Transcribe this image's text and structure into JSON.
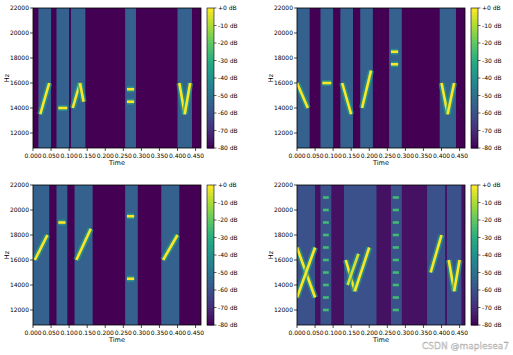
{
  "chart_data": [
    {
      "type": "spectrogram",
      "xlabel": "Time",
      "ylabel": "Hz",
      "xlim": [
        0,
        0.465
      ],
      "ylim": [
        10800,
        22000
      ],
      "xticks": [
        {
          "value": 0,
          "label": "0.000"
        },
        {
          "value": 0.05,
          "label": "0.050"
        },
        {
          "value": 0.1,
          "label": "0.100"
        },
        {
          "value": 0.15,
          "label": "0.150"
        },
        {
          "value": 0.2,
          "label": "0.200"
        },
        {
          "value": 0.25,
          "label": "0.250"
        },
        {
          "value": 0.3,
          "label": "0.300"
        },
        {
          "value": 0.35,
          "label": "0.350"
        },
        {
          "value": 0.4,
          "label": "0.400"
        },
        {
          "value": 0.45,
          "label": "0.450"
        }
      ],
      "yticks": [
        12000,
        14000,
        16000,
        18000,
        20000,
        22000
      ],
      "colorbar_range": [
        -80,
        0
      ],
      "colorbar_ticks": [
        {
          "value": 0,
          "label": "+0 dB"
        },
        {
          "value": -10,
          "label": "-10 dB"
        },
        {
          "value": -20,
          "label": "-20 dB"
        },
        {
          "value": -30,
          "label": "-30 dB"
        },
        {
          "value": -40,
          "label": "-40 dB"
        },
        {
          "value": -50,
          "label": "-50 dB"
        },
        {
          "value": -60,
          "label": "-60 dB"
        },
        {
          "value": -70,
          "label": "-70 dB"
        },
        {
          "value": -80,
          "label": "-80 dB"
        }
      ],
      "background": -80,
      "bands": {
        "t0": [
          0.015,
          0.065,
          0.105,
          0.255,
          0.4
        ],
        "t1": [
          0.05,
          0.1,
          0.145,
          0.285,
          0.44
        ],
        "level": [
          -55,
          -55,
          -55,
          -55,
          -55
        ]
      },
      "chirps": {
        "t0": [
          0.02,
          0.07,
          0.11,
          0.13,
          0.26,
          0.26,
          0.405,
          0.42
        ],
        "t1": [
          0.045,
          0.095,
          0.13,
          0.14,
          0.28,
          0.28,
          0.42,
          0.435
        ],
        "f0": [
          13500,
          14000,
          14000,
          16000,
          15500,
          14500,
          16000,
          13500
        ],
        "f1": [
          16000,
          14000,
          16000,
          14500,
          15500,
          14500,
          13500,
          16000
        ],
        "level": [
          0,
          0,
          0,
          0,
          0,
          0,
          0,
          0
        ]
      }
    },
    {
      "type": "spectrogram",
      "xlabel": "Time",
      "ylabel": "Hz",
      "xlim": [
        0,
        0.465
      ],
      "ylim": [
        10800,
        22000
      ],
      "xticks": [
        {
          "value": 0,
          "label": "0.000"
        },
        {
          "value": 0.05,
          "label": "0.050"
        },
        {
          "value": 0.1,
          "label": "0.100"
        },
        {
          "value": 0.15,
          "label": "0.150"
        },
        {
          "value": 0.2,
          "label": "0.200"
        },
        {
          "value": 0.25,
          "label": "0.250"
        },
        {
          "value": 0.3,
          "label": "0.300"
        },
        {
          "value": 0.35,
          "label": "0.350"
        },
        {
          "value": 0.4,
          "label": "0.400"
        },
        {
          "value": 0.45,
          "label": "0.450"
        }
      ],
      "yticks": [
        12000,
        14000,
        16000,
        18000,
        20000,
        22000
      ],
      "colorbar_range": [
        -80,
        0
      ],
      "colorbar_ticks": [
        {
          "value": 0,
          "label": "+0 dB"
        },
        {
          "value": -10,
          "label": "-10 dB"
        },
        {
          "value": -20,
          "label": "-20 dB"
        },
        {
          "value": -30,
          "label": "-30 dB"
        },
        {
          "value": -40,
          "label": "-40 dB"
        },
        {
          "value": -50,
          "label": "-50 dB"
        },
        {
          "value": -60,
          "label": "-60 dB"
        },
        {
          "value": -70,
          "label": "-70 dB"
        },
        {
          "value": -80,
          "label": "-80 dB"
        }
      ],
      "background": -80,
      "bands": {
        "t0": [
          0,
          0.065,
          0.12,
          0.175,
          0.255,
          0.395
        ],
        "t1": [
          0.035,
          0.1,
          0.155,
          0.21,
          0.29,
          0.44
        ],
        "level": [
          -55,
          -55,
          -55,
          -55,
          -55,
          -55
        ]
      },
      "chirps": {
        "t0": [
          0,
          0.07,
          0.125,
          0.18,
          0.26,
          0.26,
          0.4,
          0.417
        ],
        "t1": [
          0.03,
          0.095,
          0.15,
          0.205,
          0.28,
          0.28,
          0.417,
          0.435
        ],
        "f0": [
          16000,
          16000,
          16000,
          14000,
          18500,
          17500,
          16000,
          13500
        ],
        "f1": [
          14000,
          16000,
          13500,
          17000,
          18500,
          17500,
          13500,
          16000
        ],
        "level": [
          0,
          0,
          0,
          0,
          0,
          0,
          0,
          0
        ]
      }
    },
    {
      "type": "spectrogram",
      "xlabel": "Time",
      "ylabel": "Hz",
      "xlim": [
        0,
        0.465
      ],
      "ylim": [
        10800,
        22000
      ],
      "xticks": [
        {
          "value": 0,
          "label": "0.000"
        },
        {
          "value": 0.05,
          "label": "0.050"
        },
        {
          "value": 0.1,
          "label": "0.100"
        },
        {
          "value": 0.15,
          "label": "0.150"
        },
        {
          "value": 0.2,
          "label": "0.200"
        },
        {
          "value": 0.25,
          "label": "0.250"
        },
        {
          "value": 0.3,
          "label": "0.300"
        },
        {
          "value": 0.35,
          "label": "0.350"
        },
        {
          "value": 0.4,
          "label": "0.400"
        },
        {
          "value": 0.45,
          "label": "0.450"
        }
      ],
      "yticks": [
        12000,
        14000,
        16000,
        18000,
        20000,
        22000
      ],
      "colorbar_range": [
        -80,
        0
      ],
      "colorbar_ticks": [
        {
          "value": 0,
          "label": "+0 dB"
        },
        {
          "value": -10,
          "label": "-10 dB"
        },
        {
          "value": -20,
          "label": "-20 dB"
        },
        {
          "value": -30,
          "label": "-30 dB"
        },
        {
          "value": -40,
          "label": "-40 dB"
        },
        {
          "value": -50,
          "label": "-50 dB"
        },
        {
          "value": -60,
          "label": "-60 dB"
        },
        {
          "value": -70,
          "label": "-70 dB"
        },
        {
          "value": -80,
          "label": "-80 dB"
        }
      ],
      "background": -80,
      "bands": {
        "t0": [
          0,
          0.065,
          0.115,
          0.255,
          0.355
        ],
        "t1": [
          0.045,
          0.095,
          0.165,
          0.29,
          0.405
        ],
        "level": [
          -55,
          -55,
          -55,
          -55,
          -55
        ]
      },
      "chirps": {
        "t0": [
          0.005,
          0.07,
          0.12,
          0.26,
          0.26,
          0.36
        ],
        "t1": [
          0.04,
          0.09,
          0.16,
          0.28,
          0.28,
          0.4
        ],
        "f0": [
          16000,
          19000,
          16000,
          19500,
          14500,
          16000
        ],
        "f1": [
          18000,
          19000,
          18500,
          19500,
          14500,
          18000
        ],
        "level": [
          0,
          0,
          0,
          0,
          0,
          0
        ]
      }
    },
    {
      "type": "spectrogram",
      "xlabel": "Time",
      "ylabel": "Hz",
      "xlim": [
        0,
        0.465
      ],
      "ylim": [
        10800,
        22000
      ],
      "xticks": [
        {
          "value": 0,
          "label": "0.000"
        },
        {
          "value": 0.05,
          "label": "0.050"
        },
        {
          "value": 0.1,
          "label": "0.100"
        },
        {
          "value": 0.15,
          "label": "0.150"
        },
        {
          "value": 0.2,
          "label": "0.200"
        },
        {
          "value": 0.25,
          "label": "0.250"
        },
        {
          "value": 0.3,
          "label": "0.300"
        },
        {
          "value": 0.35,
          "label": "0.350"
        },
        {
          "value": 0.4,
          "label": "0.400"
        },
        {
          "value": 0.45,
          "label": "0.450"
        }
      ],
      "yticks": [
        12000,
        14000,
        16000,
        18000,
        20000,
        22000
      ],
      "colorbar_range": [
        -80,
        0
      ],
      "colorbar_ticks": [
        {
          "value": 0,
          "label": "+0 dB"
        },
        {
          "value": -10,
          "label": "-10 dB"
        },
        {
          "value": -20,
          "label": "-20 dB"
        },
        {
          "value": -30,
          "label": "-30 dB"
        },
        {
          "value": -40,
          "label": "-40 dB"
        },
        {
          "value": -50,
          "label": "-50 dB"
        },
        {
          "value": -60,
          "label": "-60 dB"
        },
        {
          "value": -70,
          "label": "-70 dB"
        },
        {
          "value": -80,
          "label": "-80 dB"
        }
      ],
      "background": -76,
      "bands": {
        "t0": [
          0,
          0.065,
          0.13,
          0.26,
          0.36,
          0.415
        ],
        "t1": [
          0.05,
          0.095,
          0.22,
          0.29,
          0.41,
          0.455
        ],
        "level": [
          -60,
          -60,
          -60,
          -60,
          -60,
          -60
        ]
      },
      "chirps": {
        "t0": [
          0,
          0,
          0.072,
          0.072,
          0.072,
          0.072,
          0.072,
          0.072,
          0.072,
          0.072,
          0.072,
          0.072,
          0.135,
          0.16,
          0.14,
          0.265,
          0.265,
          0.265,
          0.265,
          0.265,
          0.265,
          0.265,
          0.265,
          0.265,
          0.265,
          0.37,
          0.42,
          0.435
        ],
        "t1": [
          0.05,
          0.05,
          0.088,
          0.088,
          0.088,
          0.088,
          0.088,
          0.088,
          0.088,
          0.088,
          0.088,
          0.088,
          0.16,
          0.2,
          0.17,
          0.282,
          0.282,
          0.282,
          0.282,
          0.282,
          0.282,
          0.282,
          0.282,
          0.282,
          0.282,
          0.4,
          0.435,
          0.45
        ],
        "f0": [
          17000,
          13000,
          12000,
          13000,
          14000,
          15000,
          16000,
          17000,
          18000,
          19000,
          20000,
          21000,
          16000,
          13500,
          14000,
          12000,
          13000,
          14000,
          15000,
          16000,
          17000,
          18000,
          19000,
          20000,
          21000,
          15000,
          16000,
          13500
        ],
        "f1": [
          13000,
          17000,
          12000,
          13000,
          14000,
          15000,
          16000,
          17000,
          18000,
          19000,
          20000,
          21000,
          13500,
          17000,
          16500,
          12000,
          13000,
          14000,
          15000,
          16000,
          17000,
          18000,
          19000,
          20000,
          21000,
          18000,
          13500,
          16000
        ],
        "level": [
          0,
          0,
          -25,
          -25,
          -25,
          -25,
          -25,
          -25,
          -25,
          -25,
          -25,
          -25,
          0,
          0,
          -5,
          -25,
          -25,
          -25,
          -25,
          -25,
          -25,
          -25,
          -25,
          -25,
          -25,
          0,
          0,
          0
        ]
      }
    }
  ],
  "watermark": "CSDN @maplesea7"
}
